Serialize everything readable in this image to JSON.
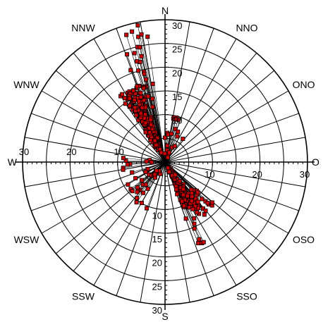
{
  "chart_data": {
    "type": "scatter",
    "subtype": "polar-wind-rose",
    "radial_range": [
      0,
      30
    ],
    "radial_ticks": [
      5,
      10,
      15,
      20,
      25,
      30
    ],
    "radial_tick_labels": {
      "north": [
        "10",
        "15",
        "20",
        "25",
        "30"
      ],
      "south": [
        "10",
        "15",
        "20",
        "25",
        "30"
      ],
      "west": [
        "10",
        "20",
        "30"
      ],
      "east": [
        "10",
        "20",
        "30"
      ]
    },
    "direction_labels": [
      {
        "text": "N",
        "angle": 0
      },
      {
        "text": "NNO",
        "angle": 30
      },
      {
        "text": "ONO",
        "angle": 60
      },
      {
        "text": "O",
        "angle": 90
      },
      {
        "text": "OSO",
        "angle": 120
      },
      {
        "text": "SSO",
        "angle": 150
      },
      {
        "text": "S",
        "angle": 180
      },
      {
        "text": "SSW",
        "angle": 210
      },
      {
        "text": "WSW",
        "angle": 240
      },
      {
        "text": "W",
        "angle": 270
      },
      {
        "text": "WNW",
        "angle": 300
      },
      {
        "text": "NNW",
        "angle": 330
      }
    ],
    "grid": true,
    "spoke_step_deg": 10,
    "marker_color": "#cc0000",
    "marker_edge": "#000000",
    "clusters": [
      {
        "angle_center": 335,
        "angle_spread": 10,
        "r_min": 2,
        "r_max": 17,
        "count": 170
      },
      {
        "angle_center": 345,
        "angle_spread": 8,
        "r_min": 10,
        "r_max": 30,
        "count": 28
      },
      {
        "angle_center": 150,
        "angle_spread": 10,
        "r_min": 1,
        "r_max": 11,
        "count": 130
      },
      {
        "angle_center": 140,
        "angle_spread": 14,
        "r_min": 8,
        "r_max": 14,
        "count": 40
      },
      {
        "angle_center": 155,
        "angle_spread": 6,
        "r_min": 12,
        "r_max": 19,
        "count": 8
      },
      {
        "angle_center": 20,
        "angle_spread": 25,
        "r_min": 1,
        "r_max": 10,
        "count": 22
      },
      {
        "angle_center": 225,
        "angle_spread": 30,
        "r_min": 2,
        "r_max": 11,
        "count": 30
      },
      {
        "angle_center": 265,
        "angle_spread": 15,
        "r_min": 1,
        "r_max": 9,
        "count": 10
      }
    ]
  }
}
